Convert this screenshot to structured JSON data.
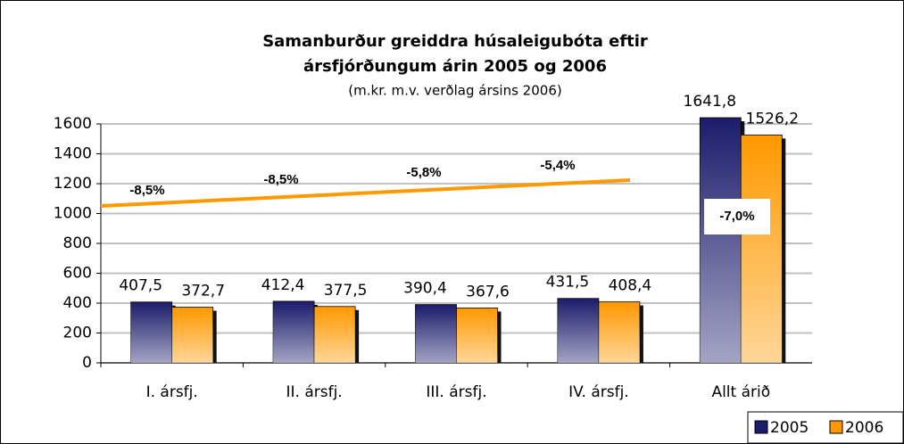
{
  "chart_data": {
    "type": "bar",
    "title": [
      "Samanburður greiddra húsaleigubóta eftir",
      "ársfjórðungum árin 2005 og 2006"
    ],
    "subtitle": "(m.kr. m.v. verðlag ársins 2006)",
    "categories": [
      "I. ársfj.",
      "II. ársfj.",
      "III. ársfj.",
      "IV. ársfj.",
      "Allt árið"
    ],
    "series": [
      {
        "name": "2005",
        "color": "#1c1c6c",
        "values": [
          407.5,
          412.4,
          390.4,
          431.5,
          1641.8
        ],
        "value_labels": [
          "407,5",
          "412,4",
          "390,4",
          "431,5",
          "1641,8"
        ]
      },
      {
        "name": "2006",
        "color": "#ff9900",
        "values": [
          372.7,
          377.5,
          367.6,
          408.4,
          1526.2
        ],
        "value_labels": [
          "372,7",
          "377,5",
          "367,6",
          "408,4",
          "1526,2"
        ]
      }
    ],
    "annotations": [
      "-8,5%",
      "-8,5%",
      "-5,8%",
      "-5,4%",
      "-7,0%"
    ],
    "ylim": [
      0,
      1600
    ],
    "yticks": [
      0,
      200,
      400,
      600,
      800,
      1000,
      1200,
      1400,
      1600
    ],
    "grid": true,
    "legend": "bottom-right"
  }
}
